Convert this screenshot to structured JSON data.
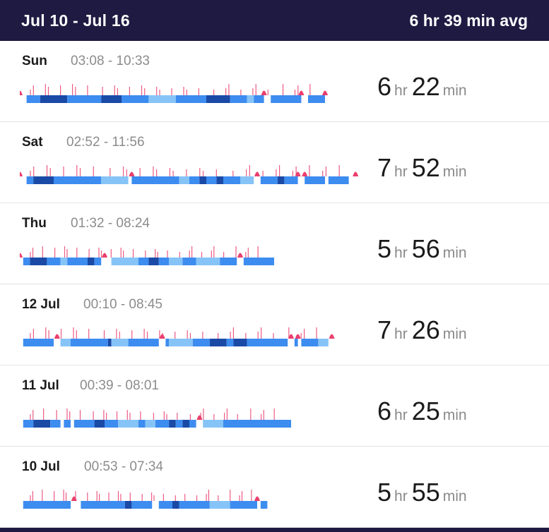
{
  "header": {
    "date_range": "Jul 10 - Jul 16",
    "average": "6 hr 39 min avg"
  },
  "colors": {
    "header_bg": "#1f1a42",
    "awake": "#ea3f6e",
    "rem": "#86c4f7",
    "light": "#3d8cf0",
    "deep": "#1a4aa6"
  },
  "entries": [
    {
      "day": "Sun",
      "time_range": "03:08 - 10:33",
      "hours": "6",
      "hr_unit": "hr",
      "minutes": "22",
      "min_unit": "min",
      "bar_end": 0.91,
      "segments": [
        [
          0.02,
          0.06,
          "light"
        ],
        [
          0.06,
          0.14,
          "deep"
        ],
        [
          0.14,
          0.24,
          "light"
        ],
        [
          0.24,
          0.3,
          "deep"
        ],
        [
          0.3,
          0.38,
          "light"
        ],
        [
          0.38,
          0.46,
          "rem"
        ],
        [
          0.46,
          0.55,
          "light"
        ],
        [
          0.55,
          0.62,
          "deep"
        ],
        [
          0.62,
          0.67,
          "light"
        ],
        [
          0.67,
          0.69,
          "rem"
        ],
        [
          0.69,
          0.72,
          "light"
        ],
        [
          0.74,
          0.83,
          "light"
        ],
        [
          0.85,
          0.9,
          "light"
        ]
      ],
      "wakes": [
        0.0,
        0.72,
        0.83,
        0.9
      ]
    },
    {
      "day": "Sat",
      "time_range": "02:52 - 11:56",
      "hours": "7",
      "hr_unit": "hr",
      "minutes": "52",
      "min_unit": "min",
      "bar_end": 1.0,
      "segments": [
        [
          0.02,
          0.04,
          "light"
        ],
        [
          0.04,
          0.1,
          "deep"
        ],
        [
          0.1,
          0.24,
          "light"
        ],
        [
          0.24,
          0.32,
          "rem"
        ],
        [
          0.33,
          0.47,
          "light"
        ],
        [
          0.47,
          0.5,
          "rem"
        ],
        [
          0.5,
          0.53,
          "light"
        ],
        [
          0.53,
          0.55,
          "deep"
        ],
        [
          0.55,
          0.58,
          "light"
        ],
        [
          0.58,
          0.6,
          "deep"
        ],
        [
          0.6,
          0.65,
          "light"
        ],
        [
          0.65,
          0.69,
          "rem"
        ],
        [
          0.71,
          0.76,
          "light"
        ],
        [
          0.76,
          0.78,
          "deep"
        ],
        [
          0.78,
          0.82,
          "light"
        ],
        [
          0.84,
          0.9,
          "light"
        ],
        [
          0.91,
          0.97,
          "light"
        ]
      ],
      "wakes": [
        0.0,
        0.33,
        0.7,
        0.82,
        0.84,
        0.99
      ]
    },
    {
      "day": "Thu",
      "time_range": "01:32 - 08:24",
      "hours": "5",
      "hr_unit": "hr",
      "minutes": "56",
      "min_unit": "min",
      "bar_end": 0.75,
      "segments": [
        [
          0.01,
          0.03,
          "light"
        ],
        [
          0.03,
          0.08,
          "deep"
        ],
        [
          0.08,
          0.12,
          "light"
        ],
        [
          0.12,
          0.14,
          "rem"
        ],
        [
          0.14,
          0.2,
          "light"
        ],
        [
          0.2,
          0.22,
          "deep"
        ],
        [
          0.22,
          0.24,
          "light"
        ],
        [
          0.27,
          0.35,
          "rem"
        ],
        [
          0.35,
          0.38,
          "light"
        ],
        [
          0.38,
          0.41,
          "deep"
        ],
        [
          0.41,
          0.44,
          "light"
        ],
        [
          0.44,
          0.48,
          "rem"
        ],
        [
          0.48,
          0.52,
          "light"
        ],
        [
          0.52,
          0.59,
          "rem"
        ],
        [
          0.59,
          0.64,
          "light"
        ],
        [
          0.66,
          0.75,
          "light"
        ]
      ],
      "wakes": [
        0.0,
        0.25,
        0.65
      ]
    },
    {
      "day": "12 Jul",
      "time_range": "00:10 - 08:45",
      "hours": "7",
      "hr_unit": "hr",
      "minutes": "26",
      "min_unit": "min",
      "bar_end": 0.93,
      "segments": [
        [
          0.01,
          0.1,
          "light"
        ],
        [
          0.12,
          0.15,
          "rem"
        ],
        [
          0.15,
          0.26,
          "light"
        ],
        [
          0.26,
          0.27,
          "deep"
        ],
        [
          0.27,
          0.32,
          "rem"
        ],
        [
          0.32,
          0.41,
          "light"
        ],
        [
          0.43,
          0.44,
          "light"
        ],
        [
          0.44,
          0.51,
          "rem"
        ],
        [
          0.51,
          0.56,
          "light"
        ],
        [
          0.56,
          0.61,
          "deep"
        ],
        [
          0.61,
          0.63,
          "light"
        ],
        [
          0.63,
          0.67,
          "deep"
        ],
        [
          0.67,
          0.79,
          "light"
        ],
        [
          0.81,
          0.82,
          "light"
        ],
        [
          0.83,
          0.88,
          "light"
        ],
        [
          0.88,
          0.91,
          "rem"
        ]
      ],
      "wakes": [
        0.11,
        0.42,
        0.8,
        0.82,
        0.92
      ]
    },
    {
      "day": "11 Jul",
      "time_range": "00:39 - 08:01",
      "hours": "6",
      "hr_unit": "hr",
      "minutes": "25",
      "min_unit": "min",
      "bar_end": 0.8,
      "segments": [
        [
          0.01,
          0.04,
          "light"
        ],
        [
          0.04,
          0.09,
          "deep"
        ],
        [
          0.09,
          0.12,
          "light"
        ],
        [
          0.13,
          0.15,
          "light"
        ],
        [
          0.16,
          0.22,
          "light"
        ],
        [
          0.22,
          0.25,
          "deep"
        ],
        [
          0.25,
          0.29,
          "light"
        ],
        [
          0.29,
          0.35,
          "rem"
        ],
        [
          0.35,
          0.37,
          "light"
        ],
        [
          0.37,
          0.4,
          "rem"
        ],
        [
          0.4,
          0.44,
          "light"
        ],
        [
          0.44,
          0.46,
          "deep"
        ],
        [
          0.46,
          0.48,
          "light"
        ],
        [
          0.48,
          0.5,
          "deep"
        ],
        [
          0.5,
          0.52,
          "light"
        ],
        [
          0.54,
          0.6,
          "rem"
        ],
        [
          0.6,
          0.8,
          "light"
        ]
      ],
      "wakes": [
        0.53
      ]
    },
    {
      "day": "10 Jul",
      "time_range": "00:53 - 07:34",
      "hours": "5",
      "hr_unit": "hr",
      "minutes": "55",
      "min_unit": "min",
      "bar_end": 0.73,
      "segments": [
        [
          0.01,
          0.15,
          "light"
        ],
        [
          0.18,
          0.31,
          "light"
        ],
        [
          0.31,
          0.33,
          "deep"
        ],
        [
          0.33,
          0.39,
          "light"
        ],
        [
          0.41,
          0.45,
          "light"
        ],
        [
          0.45,
          0.47,
          "deep"
        ],
        [
          0.47,
          0.56,
          "light"
        ],
        [
          0.56,
          0.62,
          "rem"
        ],
        [
          0.62,
          0.7,
          "light"
        ],
        [
          0.71,
          0.73,
          "light"
        ]
      ],
      "wakes": [
        0.16,
        0.7
      ]
    }
  ]
}
